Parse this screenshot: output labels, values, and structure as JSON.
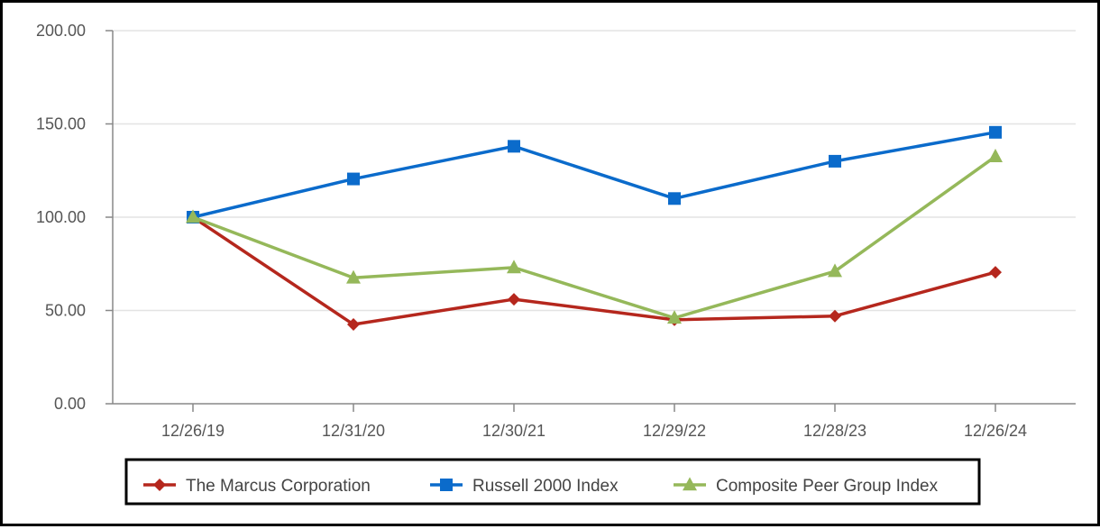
{
  "chart_data": {
    "type": "line",
    "title": "",
    "xlabel": "",
    "ylabel": "",
    "categories": [
      "12/26/19",
      "12/31/20",
      "12/30/21",
      "12/29/22",
      "12/28/23",
      "12/26/24"
    ],
    "ylim": [
      0,
      200
    ],
    "yticks": [
      0,
      50,
      100,
      150,
      200
    ],
    "ytick_labels": [
      "0.00",
      "50.00",
      "100.00",
      "150.00",
      "200.00"
    ],
    "grid": true,
    "legend_position": "bottom",
    "series": [
      {
        "name": "The Marcus Corporation",
        "values": [
          100,
          42.5,
          56,
          45,
          47,
          70.5
        ],
        "color": "#b5271d",
        "marker": "diamond"
      },
      {
        "name": "Russell 2000 Index",
        "values": [
          100,
          120.5,
          138,
          110,
          130,
          145.5
        ],
        "color": "#0b6bcb",
        "marker": "square"
      },
      {
        "name": "Composite Peer Group Index",
        "values": [
          100,
          67.5,
          73,
          46,
          71,
          132.5
        ],
        "color": "#95b85a",
        "marker": "triangle"
      }
    ]
  }
}
